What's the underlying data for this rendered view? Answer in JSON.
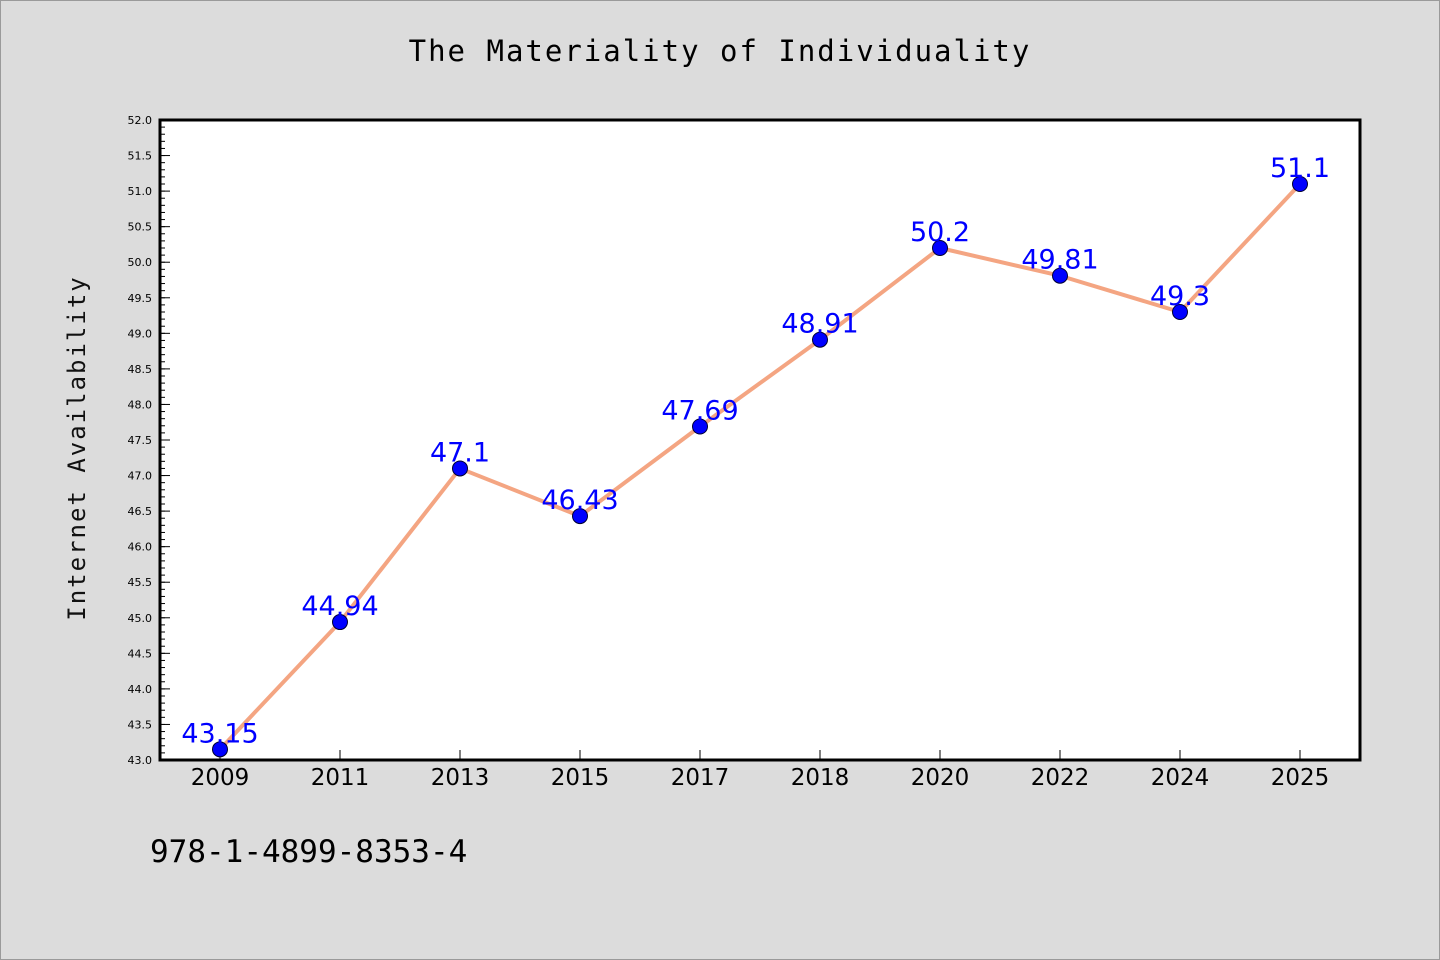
{
  "chart_data": {
    "type": "line",
    "title": "The Materiality of Individuality",
    "xlabel": "",
    "ylabel": "Internet Availability",
    "categories": [
      "2009",
      "2011",
      "2013",
      "2015",
      "2017",
      "2018",
      "2020",
      "2022",
      "2024",
      "2025"
    ],
    "series": [
      {
        "values": [
          43.15,
          44.94,
          47.1,
          46.43,
          47.69,
          48.91,
          50.2,
          49.81,
          49.3,
          51.1
        ],
        "data_labels": [
          "43.15",
          "44.94",
          "47.1",
          "46.43",
          "47.69",
          "48.91",
          "50.2",
          "49.81",
          "49.3",
          "51.1"
        ],
        "line_color": "#f4a582",
        "marker_color": "#0000ff"
      }
    ],
    "ylim": [
      43.0,
      52.0
    ],
    "yticks": [
      "43.0",
      "43.5",
      "44.0",
      "44.5",
      "45.0",
      "45.5",
      "46.0",
      "46.5",
      "47.0",
      "47.5",
      "48.0",
      "48.5",
      "49.0",
      "49.5",
      "50.0",
      "50.5",
      "51.0",
      "51.5",
      "52.0"
    ],
    "grid": false,
    "legend": "none"
  },
  "footer": {
    "code": "978-1-4899-8353-4"
  },
  "colors": {
    "background": "#dcdcdc",
    "plot_background": "#ffffff",
    "label": "#0000ff"
  }
}
